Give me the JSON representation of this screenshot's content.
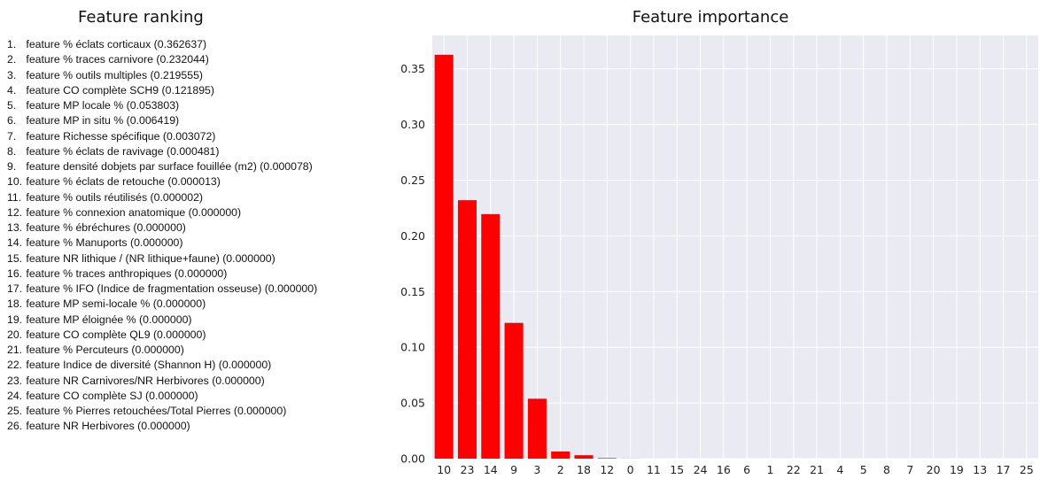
{
  "ranking": {
    "title": "Feature ranking",
    "items": [
      {
        "rank": "1.",
        "text": "feature % éclats corticaux (0.362637)"
      },
      {
        "rank": "2.",
        "text": "feature % traces carnivore  (0.232044)"
      },
      {
        "rank": "3.",
        "text": "feature % outils multiples (0.219555)"
      },
      {
        "rank": "4.",
        "text": "feature CO complète SCH9 (0.121895)"
      },
      {
        "rank": "5.",
        "text": "feature MP locale % (0.053803)"
      },
      {
        "rank": "6.",
        "text": "feature MP in situ % (0.006419)"
      },
      {
        "rank": "7.",
        "text": "feature Richesse spécifique (0.003072)"
      },
      {
        "rank": "8.",
        "text": "feature % éclats de ravivage (0.000481)"
      },
      {
        "rank": "9.",
        "text": "feature densité dobjets par surface fouillée (m2) (0.000078)"
      },
      {
        "rank": "10.",
        "text": "feature % éclats de retouche (0.000013)"
      },
      {
        "rank": "11.",
        "text": "feature % outils réutilisés (0.000002)"
      },
      {
        "rank": "12.",
        "text": "feature % connexion anatomique  (0.000000)"
      },
      {
        "rank": "13.",
        "text": "feature % ébréchures (0.000000)"
      },
      {
        "rank": "14.",
        "text": "feature % Manuports (0.000000)"
      },
      {
        "rank": "15.",
        "text": "feature NR lithique / (NR lithique+faune) (0.000000)"
      },
      {
        "rank": "16.",
        "text": "feature % traces anthropiques (0.000000)"
      },
      {
        "rank": "17.",
        "text": "feature % IFO (Indice de fragmentation osseuse) (0.000000)"
      },
      {
        "rank": "18.",
        "text": "feature MP semi-locale % (0.000000)"
      },
      {
        "rank": "19.",
        "text": "feature MP éloignée % (0.000000)"
      },
      {
        "rank": "20.",
        "text": "feature CO complète QL9 (0.000000)"
      },
      {
        "rank": "21.",
        "text": "feature % Percuteurs (0.000000)"
      },
      {
        "rank": "22.",
        "text": "feature Indice de diversité (Shannon H) (0.000000)"
      },
      {
        "rank": "23.",
        "text": "feature NR Carnivores/NR Herbivores (0.000000)"
      },
      {
        "rank": "24.",
        "text": "feature CO complète SJ (0.000000)"
      },
      {
        "rank": "25.",
        "text": "feature % Pierres retouchées/Total Pierres (0.000000)"
      },
      {
        "rank": "26.",
        "text": "feature NR Herbivores  (0.000000)"
      }
    ]
  },
  "chart_data": {
    "type": "bar",
    "title": "Feature importance",
    "xlabel": "",
    "ylabel": "",
    "categories": [
      "10",
      "23",
      "14",
      "9",
      "3",
      "2",
      "18",
      "12",
      "0",
      "11",
      "15",
      "24",
      "16",
      "6",
      "1",
      "22",
      "21",
      "4",
      "5",
      "8",
      "7",
      "20",
      "19",
      "13",
      "17",
      "25"
    ],
    "values": [
      0.362637,
      0.232044,
      0.219555,
      0.121895,
      0.053803,
      0.006419,
      0.003072,
      0.000481,
      7.8e-05,
      1.3e-05,
      2e-06,
      0.0,
      0.0,
      0.0,
      0.0,
      0.0,
      0.0,
      0.0,
      0.0,
      0.0,
      0.0,
      0.0,
      0.0,
      0.0,
      0.0,
      0.0
    ],
    "yticks": [
      "0.00",
      "0.05",
      "0.10",
      "0.15",
      "0.20",
      "0.25",
      "0.30",
      "0.35"
    ],
    "ylim": [
      0,
      0.38
    ],
    "grid": true,
    "legend": "none",
    "colors": {
      "bar": "#ff0000",
      "background": "#eaeaf2",
      "grid": "#ffffff"
    }
  }
}
